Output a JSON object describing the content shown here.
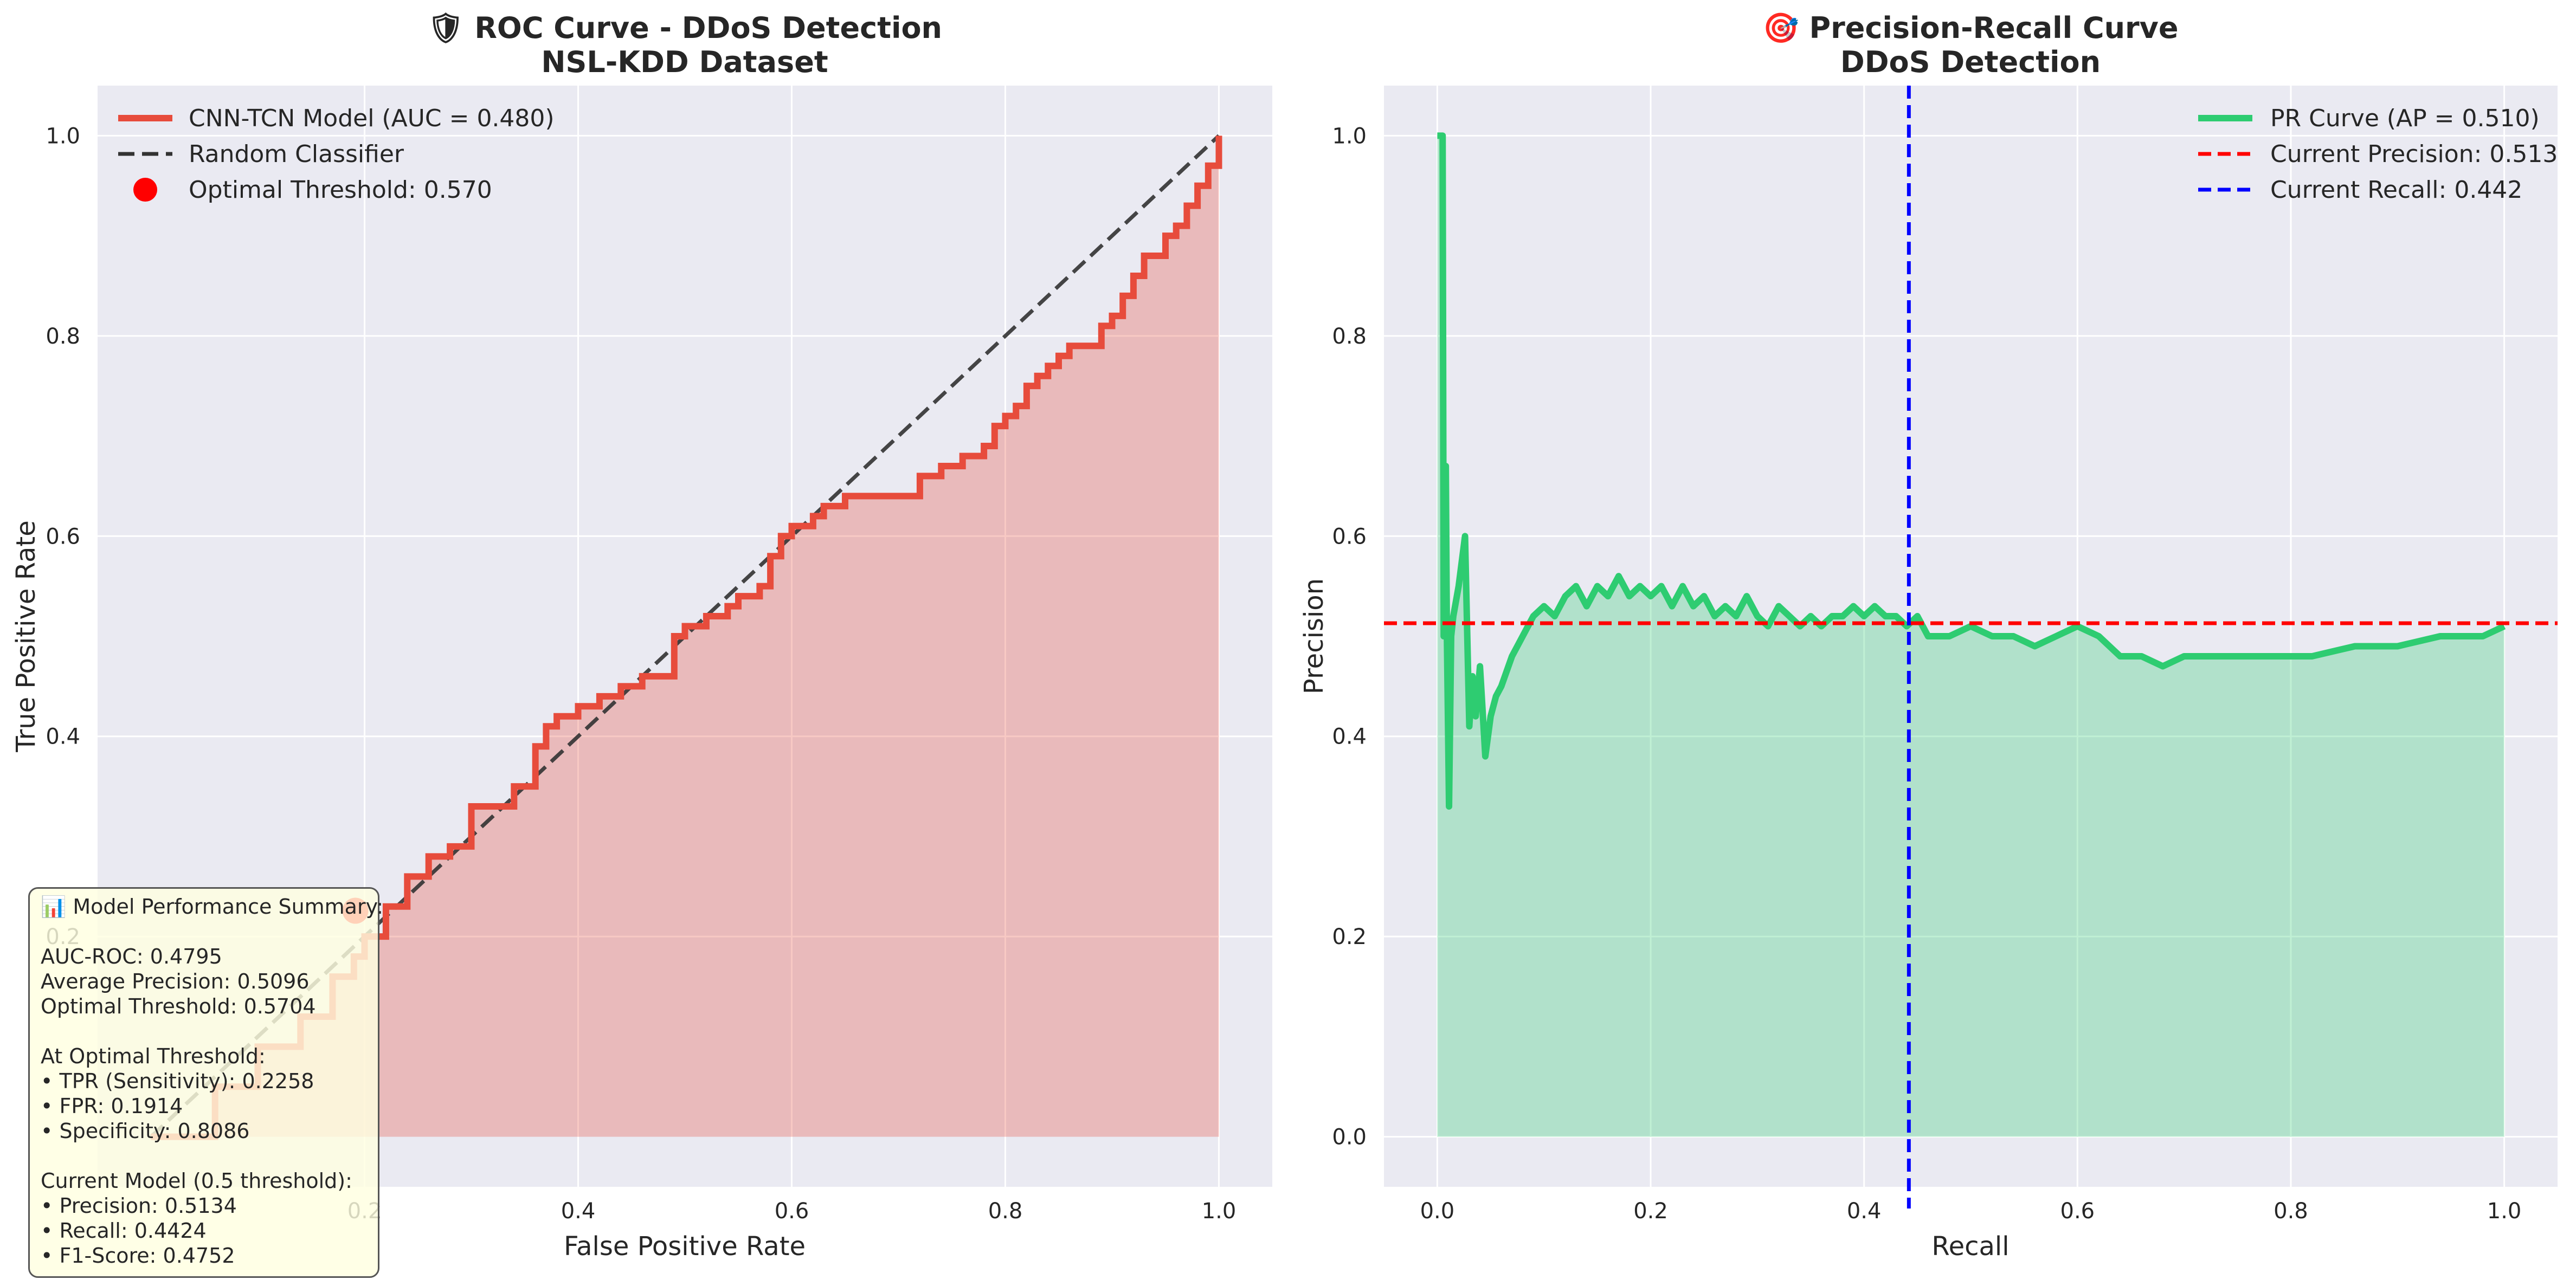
{
  "chart_data": [
    {
      "type": "line",
      "title": "🛡 ROC Curve - DDoS Detection",
      "subtitle": "NSL-KDD Dataset",
      "xlabel": "False Positive Rate",
      "ylabel": "True Positive Rate",
      "xlim": [
        -0.05,
        1.05
      ],
      "ylim": [
        -0.05,
        1.05
      ],
      "xticks": [
        "0.2",
        "0.4",
        "0.6",
        "0.8",
        "1.0"
      ],
      "yticks": [
        "0.2",
        "0.4",
        "0.6",
        "0.8",
        "1.0"
      ],
      "grid": true,
      "legend_position": "upper-left",
      "series": [
        {
          "name": "CNN-TCN Model (AUC = 0.480)",
          "color": "#e74c3c",
          "fill": true,
          "x": [
            0.0,
            0.06,
            0.1,
            0.14,
            0.17,
            0.19,
            0.2,
            0.22,
            0.24,
            0.26,
            0.28,
            0.3,
            0.32,
            0.34,
            0.36,
            0.37,
            0.38,
            0.4,
            0.42,
            0.44,
            0.46,
            0.48,
            0.49,
            0.5,
            0.52,
            0.54,
            0.55,
            0.57,
            0.58,
            0.59,
            0.6,
            0.62,
            0.63,
            0.65,
            0.7,
            0.72,
            0.74,
            0.76,
            0.78,
            0.79,
            0.8,
            0.81,
            0.82,
            0.83,
            0.84,
            0.85,
            0.86,
            0.88,
            0.89,
            0.9,
            0.91,
            0.92,
            0.93,
            0.95,
            0.96,
            0.97,
            0.98,
            0.99,
            1.0,
            1.0
          ],
          "y": [
            0.0,
            0.05,
            0.09,
            0.12,
            0.16,
            0.18,
            0.2,
            0.23,
            0.26,
            0.28,
            0.29,
            0.33,
            0.33,
            0.35,
            0.39,
            0.41,
            0.42,
            0.43,
            0.44,
            0.45,
            0.46,
            0.46,
            0.5,
            0.51,
            0.52,
            0.53,
            0.54,
            0.55,
            0.58,
            0.6,
            0.61,
            0.62,
            0.63,
            0.64,
            0.64,
            0.66,
            0.67,
            0.68,
            0.69,
            0.71,
            0.72,
            0.73,
            0.75,
            0.76,
            0.77,
            0.78,
            0.79,
            0.79,
            0.81,
            0.82,
            0.84,
            0.86,
            0.88,
            0.9,
            0.91,
            0.93,
            0.95,
            0.97,
            0.98,
            1.0
          ]
        },
        {
          "name": "Random Classifier",
          "color": "#333333",
          "dashed": true,
          "x": [
            0,
            1
          ],
          "y": [
            0,
            1
          ]
        }
      ],
      "markers": [
        {
          "name": "Optimal Threshold: 0.570",
          "color": "#ff0000",
          "x": 0.1914,
          "y": 0.2258
        }
      ]
    },
    {
      "type": "line",
      "title": "🎯 Precision-Recall Curve",
      "subtitle": "DDoS Detection",
      "xlabel": "Recall",
      "ylabel": "Precision",
      "xlim": [
        -0.05,
        1.05
      ],
      "ylim": [
        -0.05,
        1.05
      ],
      "xticks": [
        "0.0",
        "0.2",
        "0.4",
        "0.6",
        "0.8",
        "1.0"
      ],
      "yticks": [
        "0.0",
        "0.2",
        "0.4",
        "0.6",
        "0.8",
        "1.0"
      ],
      "grid": true,
      "legend_position": "upper-right",
      "series": [
        {
          "name": "PR Curve (AP = 0.510)",
          "color": "#2ecc71",
          "fill": true,
          "x": [
            0.0,
            0.005,
            0.006,
            0.008,
            0.009,
            0.011,
            0.013,
            0.015,
            0.02,
            0.026,
            0.03,
            0.033,
            0.036,
            0.04,
            0.045,
            0.05,
            0.055,
            0.06,
            0.07,
            0.08,
            0.09,
            0.1,
            0.11,
            0.12,
            0.13,
            0.14,
            0.15,
            0.16,
            0.17,
            0.18,
            0.19,
            0.2,
            0.21,
            0.22,
            0.23,
            0.24,
            0.25,
            0.26,
            0.27,
            0.28,
            0.29,
            0.3,
            0.31,
            0.32,
            0.33,
            0.34,
            0.35,
            0.36,
            0.37,
            0.38,
            0.39,
            0.4,
            0.41,
            0.42,
            0.43,
            0.44,
            0.45,
            0.46,
            0.48,
            0.5,
            0.52,
            0.54,
            0.56,
            0.58,
            0.6,
            0.62,
            0.64,
            0.66,
            0.68,
            0.7,
            0.74,
            0.78,
            0.82,
            0.86,
            0.9,
            0.94,
            0.98,
            1.0
          ],
          "y": [
            1.0,
            1.0,
            0.5,
            0.67,
            0.5,
            0.33,
            0.5,
            0.52,
            0.55,
            0.6,
            0.41,
            0.46,
            0.42,
            0.47,
            0.38,
            0.42,
            0.44,
            0.45,
            0.48,
            0.5,
            0.52,
            0.53,
            0.52,
            0.54,
            0.55,
            0.53,
            0.55,
            0.54,
            0.56,
            0.54,
            0.55,
            0.54,
            0.55,
            0.53,
            0.55,
            0.53,
            0.54,
            0.52,
            0.53,
            0.52,
            0.54,
            0.52,
            0.51,
            0.53,
            0.52,
            0.51,
            0.52,
            0.51,
            0.52,
            0.52,
            0.53,
            0.52,
            0.53,
            0.52,
            0.52,
            0.51,
            0.52,
            0.5,
            0.5,
            0.51,
            0.5,
            0.5,
            0.49,
            0.5,
            0.51,
            0.5,
            0.48,
            0.48,
            0.47,
            0.48,
            0.48,
            0.48,
            0.48,
            0.49,
            0.49,
            0.5,
            0.5,
            0.51
          ]
        }
      ],
      "reference_lines": [
        {
          "name": "Current Precision: 0.513",
          "orientation": "horizontal",
          "value": 0.513,
          "color": "#ff0000"
        },
        {
          "name": "Current Recall: 0.442",
          "orientation": "vertical",
          "value": 0.442,
          "color": "#0000ff"
        }
      ]
    }
  ],
  "summary_box": {
    "lines": [
      "📊 Model Performance Summary:",
      "",
      "AUC-ROC: 0.4795",
      "Average Precision: 0.5096",
      "Optimal Threshold: 0.5704",
      "",
      "At Optimal Threshold:",
      "• TPR (Sensitivity): 0.2258",
      "• FPR: 0.1914",
      "• Specificity: 0.8086",
      "",
      "Current Model (0.5 threshold):",
      "• Precision: 0.5134",
      "• Recall: 0.4424",
      "• F1-Score: 0.4752"
    ]
  },
  "colors": {
    "plot_background": "#eaeaf2",
    "grid": "#ffffff"
  }
}
